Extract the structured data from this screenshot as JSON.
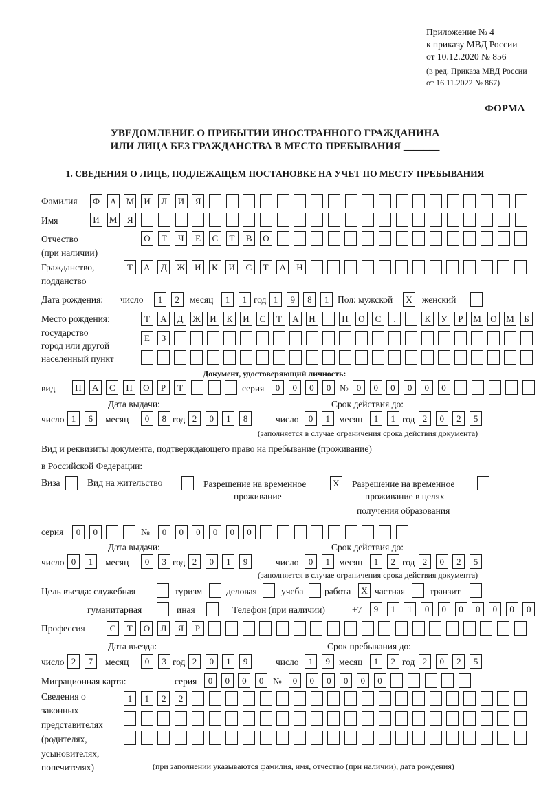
{
  "header": {
    "line1": "Приложение № 4",
    "line2": "к приказу МВД России",
    "line3": "от 10.12.2020 № 856",
    "line4": "(в ред. Приказа МВД России",
    "line5": "от 16.11.2022 № 867)",
    "form_label": "ФОРМА"
  },
  "title": {
    "line1": "УВЕДОМЛЕНИЕ О ПРИБЫТИИ ИНОСТРАННОГО ГРАЖДАНИНА",
    "line2": "ИЛИ ЛИЦА БЕЗ ГРАЖДАНСТВА В МЕСТО ПРЕБЫВАНИЯ _______"
  },
  "section1": "1. СВЕДЕНИЯ О ЛИЦЕ, ПОДЛЕЖАЩЕМ ПОСТАНОВКЕ НА УЧЕТ ПО МЕСТУ ПРЕБЫВАНИЯ",
  "labels": {
    "surname": "Фамилия",
    "name": "Имя",
    "patronymic": "Отчество",
    "patronymic_note": "(при наличии)",
    "citizenship": "Гражданство,",
    "citizenship2": "подданство",
    "dob": "Дата рождения:",
    "day": "число",
    "month": "месяц",
    "year": "год",
    "sex": "Пол: мужской",
    "female": "женский",
    "birthplace1": "Место рождения:",
    "birthplace2": "государство",
    "birthplace3": "город или другой",
    "birthplace4": "населенный пункт",
    "id_doc": "Документ, удостоверяющий личность:",
    "kind": "вид",
    "series": "серия",
    "number": "№",
    "issue_date": "Дата выдачи:",
    "valid_until": "Срок действия до:",
    "validity_note": "(заполняется в случае ограничения срока действия документа)",
    "stay_doc1": "Вид и реквизиты документа, подтверждающего право на пребывание (проживание)",
    "stay_doc2": "в Российской Федерации:",
    "visa": "Виза",
    "residence": "Вид на жительство",
    "trp1": "Разрешение на временное",
    "trp2": "проживание",
    "trp_edu1": "Разрешение на временное",
    "trp_edu2": "проживание в целях",
    "trp_edu3": "получения образования",
    "purpose": "Цель въезда: служебная",
    "tourism": "туризм",
    "business": "деловая",
    "study": "учеба",
    "work": "работа",
    "private": "частная",
    "transit": "транзит",
    "humanitarian": "гуманитарная",
    "other": "иная",
    "phone": "Телефон (при наличии)",
    "phone_prefix": "+7",
    "profession": "Профессия",
    "entry_date": "Дата въезда:",
    "stay_until": "Срок пребывания до:",
    "migration_card": "Миграционная карта:",
    "rep1": "Сведения о",
    "rep2": "законных",
    "rep3": "представителях",
    "rep4": "(родителях,",
    "rep5": "усыновителях,",
    "rep6": "попечителях)",
    "rep_note": "(при заполнении указываются фамилия, имя, отчество (при наличии), дата рождения)"
  },
  "values": {
    "surname": "ФАМИЛИЯ",
    "name": "ИМЯ",
    "patronymic": "ОТЧЕСТВО",
    "citizenship": "ТАДЖИКИСТАН",
    "dob_day": "12",
    "dob_month": "11",
    "dob_year": "1981",
    "sex_male": "X",
    "sex_female": "",
    "birthplace_row1": "ТАДЖИКИСТАН ПОС. КУРМОМБ",
    "birthplace_row2": "ЕЗ",
    "birthplace_row3": "",
    "id_kind": "ПАСПОРТ",
    "id_series": "0000",
    "id_number": "000000",
    "id_issue_day": "16",
    "id_issue_month": "08",
    "id_issue_year": "2018",
    "id_valid_day": "01",
    "id_valid_month": "11",
    "id_valid_year": "2025",
    "visa": "",
    "residence": "",
    "trp": "X",
    "trp_edu": "",
    "stay_series": "00",
    "stay_number": "000000",
    "stay_issue_day": "01",
    "stay_issue_month": "03",
    "stay_issue_year": "2019",
    "stay_valid_day": "01",
    "stay_valid_month": "12",
    "stay_valid_year": "2025",
    "purpose_service": "",
    "purpose_tourism": "",
    "purpose_business": "",
    "purpose_study": "",
    "purpose_work": "X",
    "purpose_private": "",
    "purpose_transit": "",
    "purpose_humanitarian": "",
    "purpose_other": "",
    "phone": "9110000000",
    "profession": "СТОЛЯР",
    "entry_day": "27",
    "entry_month": "03",
    "entry_year": "2019",
    "stay_until_day": "19",
    "stay_until_month": "12",
    "stay_until_year": "2025",
    "mig_series": "0000",
    "mig_number": "000000",
    "rep_row1": "1122",
    "rep_row2": "",
    "rep_row3": ""
  }
}
